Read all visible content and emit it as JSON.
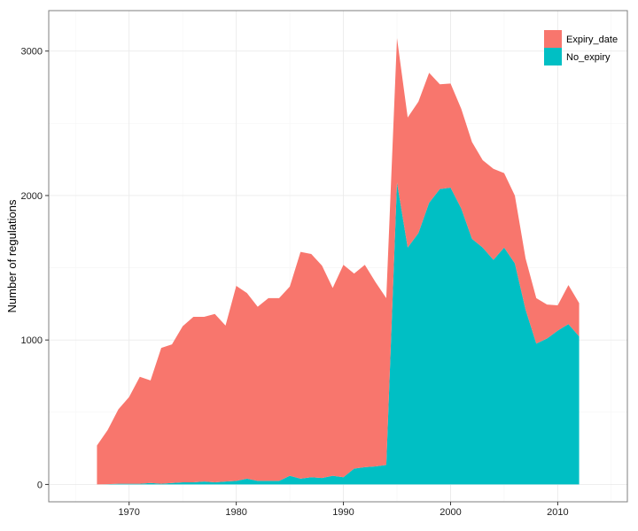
{
  "chart_data": {
    "type": "area",
    "stacked": true,
    "title": "",
    "xlabel": "",
    "ylabel": "Number of regulations",
    "xlim": [
      1962.5,
      2016.5
    ],
    "ylim": [
      -120,
      3280
    ],
    "x_ticks": [
      1970,
      1980,
      1990,
      2000,
      2010
    ],
    "y_ticks": [
      0,
      1000,
      2000,
      3000
    ],
    "grid": true,
    "legend_position": "top-right",
    "x": [
      1967,
      1968,
      1969,
      1970,
      1971,
      1972,
      1973,
      1974,
      1975,
      1976,
      1977,
      1978,
      1979,
      1980,
      1981,
      1982,
      1983,
      1984,
      1985,
      1986,
      1987,
      1988,
      1989,
      1990,
      1991,
      1992,
      1993,
      1994,
      1995,
      1996,
      1997,
      1998,
      1999,
      2000,
      2001,
      2002,
      2003,
      2004,
      2005,
      2006,
      2007,
      2008,
      2009,
      2010,
      2011,
      2012
    ],
    "series": [
      {
        "name": "No_expiry",
        "color": "#00BFC4",
        "values": [
          0,
          2,
          5,
          5,
          5,
          10,
          5,
          10,
          15,
          15,
          20,
          15,
          20,
          25,
          40,
          25,
          25,
          25,
          60,
          40,
          50,
          45,
          60,
          50,
          110,
          120,
          125,
          135,
          2090,
          1640,
          1740,
          1950,
          2045,
          2055,
          1910,
          1700,
          1640,
          1555,
          1640,
          1530,
          1210,
          975,
          1010,
          1065,
          1110,
          1025
        ]
      },
      {
        "name": "Expiry_date",
        "color": "#F8766D",
        "values": [
          270,
          375,
          515,
          600,
          740,
          710,
          940,
          960,
          1080,
          1145,
          1140,
          1165,
          1080,
          1350,
          1285,
          1205,
          1265,
          1265,
          1310,
          1570,
          1545,
          1470,
          1300,
          1470,
          1350,
          1400,
          1275,
          1155,
          1000,
          900,
          910,
          900,
          725,
          720,
          690,
          670,
          605,
          630,
          515,
          470,
          355,
          315,
          235,
          175,
          270,
          230
        ]
      }
    ]
  },
  "colors": {
    "panel_border": "#7f7f7f",
    "grid_major": "#ebebeb",
    "grid_minor": "#f5f5f5"
  }
}
